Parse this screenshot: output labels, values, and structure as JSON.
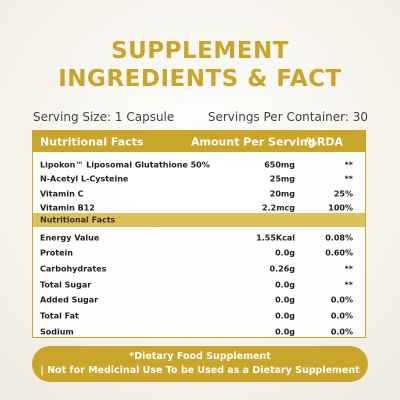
{
  "title": [
    "SUPPLEMENT",
    "INGREDIENTS & FACT"
  ],
  "serving_size": "Serving Size: 1 Capsule",
  "servings_per_container": "Servings Per Container: 30",
  "table": {
    "header": [
      "Nutritional Facts",
      "Amount Per Serving",
      "%RDA"
    ],
    "rows": [
      [
        "Lipokon™ Liposomal Glutathione 50%",
        "650mg",
        "**"
      ],
      [
        "N-Acetyl L-Cysteine",
        "25mg",
        "**"
      ],
      [
        "Vitamin C",
        "20mg",
        "25%"
      ],
      [
        "Vitamin B12",
        "2.2mcg",
        "100%"
      ]
    ],
    "subheader": "Nutritional Facts",
    "rows2": [
      [
        "Energy Value",
        "1.55Kcal",
        "0.08%"
      ],
      [
        "Protein",
        "0.0g",
        "0.60%"
      ],
      [
        "Carbohydrates",
        "0.26g",
        "**"
      ],
      [
        "Total Sugar",
        "0.0g",
        "**"
      ],
      [
        "Added Sugar",
        "0.0g",
        "0.0%"
      ],
      [
        "Total Fat",
        "0.0g",
        "0.0%"
      ],
      [
        "Sodium",
        "0.0g",
        "0.0%"
      ]
    ]
  },
  "footer": [
    "*Dietary Food Supplement",
    "| Not for Medicinal Use To be Used as a Dietary Supplement"
  ]
}
